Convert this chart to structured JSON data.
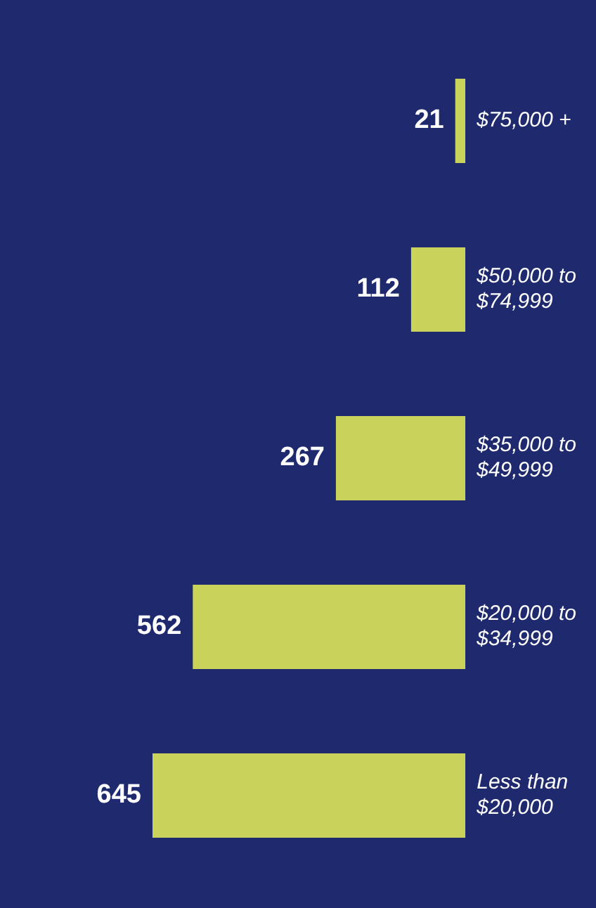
{
  "chart_data": {
    "type": "bar",
    "orientation": "horizontal",
    "categories": [
      "$75,000 +",
      "$50,000 to $74,999",
      "$35,000 to $49,999",
      "$20,000 to $34,999",
      "Less than $20,000"
    ],
    "values": [
      21,
      112,
      267,
      562,
      645
    ],
    "color": "#c9d35a",
    "data_labels": true,
    "grid": false,
    "legend": false,
    "tick_labels": "y"
  }
}
